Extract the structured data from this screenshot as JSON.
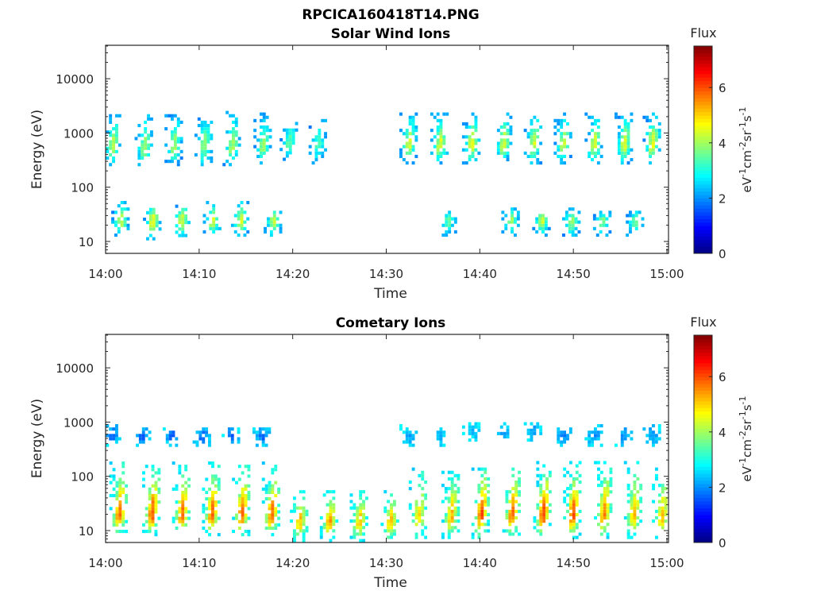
{
  "figure_title": "RPCICA160418T14.PNG",
  "chart_data": [
    {
      "type": "heatmap",
      "title": "Solar Wind Ions",
      "xlabel": "Time",
      "ylabel": "Energy (eV)",
      "x_ticks": [
        "14:00",
        "14:10",
        "14:20",
        "14:30",
        "14:40",
        "14:50",
        "15:00"
      ],
      "x_range_minutes": [
        0,
        60.2
      ],
      "y_scale": "log",
      "y_ticks": [
        "10",
        "100",
        "1000",
        "10000"
      ],
      "ylim": [
        5.8,
        42000
      ],
      "colorbar": {
        "label": "Flux",
        "units": "eV-1cm-2sr-1s-1",
        "ticks": [
          "0",
          "2",
          "4",
          "6"
        ],
        "range": [
          0,
          7.5
        ],
        "colormap": "jet"
      },
      "components": [
        {
          "t": 0.6,
          "e_lo": 280,
          "e_hi": 2600,
          "e_peak": 600,
          "flux": 4.2
        },
        {
          "t": 4.0,
          "e_lo": 280,
          "e_hi": 2600,
          "e_peak": 550,
          "flux": 4.0
        },
        {
          "t": 7.2,
          "e_lo": 280,
          "e_hi": 2600,
          "e_peak": 600,
          "flux": 4.0
        },
        {
          "t": 10.4,
          "e_lo": 280,
          "e_hi": 2600,
          "e_peak": 600,
          "flux": 3.9
        },
        {
          "t": 13.4,
          "e_lo": 280,
          "e_hi": 2600,
          "e_peak": 600,
          "flux": 4.1
        },
        {
          "t": 16.7,
          "e_lo": 300,
          "e_hi": 2400,
          "e_peak": 600,
          "flux": 4.0
        },
        {
          "t": 19.5,
          "e_lo": 350,
          "e_hi": 2000,
          "e_peak": 650,
          "flux": 3.6
        },
        {
          "t": 22.6,
          "e_lo": 300,
          "e_hi": 2000,
          "e_peak": 650,
          "flux": 3.4
        },
        {
          "t": 32.3,
          "e_lo": 300,
          "e_hi": 2600,
          "e_peak": 650,
          "flux": 4.4
        },
        {
          "t": 35.6,
          "e_lo": 300,
          "e_hi": 2600,
          "e_peak": 650,
          "flux": 4.5
        },
        {
          "t": 39.0,
          "e_lo": 300,
          "e_hi": 2600,
          "e_peak": 650,
          "flux": 4.6
        },
        {
          "t": 42.4,
          "e_lo": 300,
          "e_hi": 2600,
          "e_peak": 650,
          "flux": 4.5
        },
        {
          "t": 45.6,
          "e_lo": 300,
          "e_hi": 2600,
          "e_peak": 650,
          "flux": 4.4
        },
        {
          "t": 48.8,
          "e_lo": 300,
          "e_hi": 2600,
          "e_peak": 650,
          "flux": 4.3
        },
        {
          "t": 52.1,
          "e_lo": 300,
          "e_hi": 2600,
          "e_peak": 650,
          "flux": 4.5
        },
        {
          "t": 55.3,
          "e_lo": 300,
          "e_hi": 2600,
          "e_peak": 650,
          "flux": 4.5
        },
        {
          "t": 58.3,
          "e_lo": 300,
          "e_hi": 2600,
          "e_peak": 650,
          "flux": 4.6
        },
        {
          "t": 1.5,
          "e_lo": 14,
          "e_hi": 60,
          "e_peak": 25,
          "flux": 4.3
        },
        {
          "t": 4.9,
          "e_lo": 12,
          "e_hi": 60,
          "e_peak": 25,
          "flux": 4.6
        },
        {
          "t": 8.0,
          "e_lo": 12,
          "e_hi": 60,
          "e_peak": 25,
          "flux": 4.4
        },
        {
          "t": 11.3,
          "e_lo": 14,
          "e_hi": 60,
          "e_peak": 25,
          "flux": 4.4
        },
        {
          "t": 14.3,
          "e_lo": 14,
          "e_hi": 60,
          "e_peak": 25,
          "flux": 4.5
        },
        {
          "t": 17.8,
          "e_lo": 14,
          "e_hi": 50,
          "e_peak": 25,
          "flux": 4.2
        },
        {
          "t": 36.5,
          "e_lo": 14,
          "e_hi": 40,
          "e_peak": 25,
          "flux": 3.5
        },
        {
          "t": 43.2,
          "e_lo": 14,
          "e_hi": 45,
          "e_peak": 25,
          "flux": 4.0
        },
        {
          "t": 46.5,
          "e_lo": 14,
          "e_hi": 45,
          "e_peak": 25,
          "flux": 4.3
        },
        {
          "t": 49.7,
          "e_lo": 14,
          "e_hi": 45,
          "e_peak": 25,
          "flux": 4.2
        },
        {
          "t": 53.0,
          "e_lo": 14,
          "e_hi": 40,
          "e_peak": 25,
          "flux": 3.8
        },
        {
          "t": 56.5,
          "e_lo": 14,
          "e_hi": 40,
          "e_peak": 25,
          "flux": 3.8
        }
      ],
      "background_flux": 2.0
    },
    {
      "type": "heatmap",
      "title": "Cometary Ions",
      "xlabel": "Time",
      "ylabel": "Energy (eV)",
      "x_ticks": [
        "14:00",
        "14:10",
        "14:20",
        "14:30",
        "14:40",
        "14:50",
        "15:00"
      ],
      "x_range_minutes": [
        0,
        60.2
      ],
      "y_scale": "log",
      "y_ticks": [
        "10",
        "100",
        "1000",
        "10000"
      ],
      "ylim": [
        5.8,
        42000
      ],
      "colorbar": {
        "label": "Flux",
        "units": "eV-1cm-2sr-1s-1",
        "ticks": [
          "0",
          "2",
          "4",
          "6"
        ],
        "range": [
          0,
          7.5
        ],
        "colormap": "jet"
      },
      "components": [
        {
          "t": 0.6,
          "e_lo": 400,
          "e_hi": 1000,
          "e_peak": 600,
          "flux": 1.6
        },
        {
          "t": 3.8,
          "e_lo": 400,
          "e_hi": 900,
          "e_peak": 600,
          "flux": 1.6
        },
        {
          "t": 7.0,
          "e_lo": 400,
          "e_hi": 900,
          "e_peak": 600,
          "flux": 1.6
        },
        {
          "t": 10.2,
          "e_lo": 400,
          "e_hi": 900,
          "e_peak": 600,
          "flux": 1.6
        },
        {
          "t": 13.3,
          "e_lo": 400,
          "e_hi": 900,
          "e_peak": 600,
          "flux": 1.6
        },
        {
          "t": 16.6,
          "e_lo": 400,
          "e_hi": 900,
          "e_peak": 600,
          "flux": 1.6
        },
        {
          "t": 32.3,
          "e_lo": 400,
          "e_hi": 1000,
          "e_peak": 600,
          "flux": 2.2
        },
        {
          "t": 35.6,
          "e_lo": 400,
          "e_hi": 900,
          "e_peak": 600,
          "flux": 2.2
        },
        {
          "t": 39.0,
          "e_lo": 500,
          "e_hi": 1000,
          "e_peak": 700,
          "flux": 2.4
        },
        {
          "t": 42.4,
          "e_lo": 500,
          "e_hi": 1000,
          "e_peak": 700,
          "flux": 2.2
        },
        {
          "t": 45.6,
          "e_lo": 500,
          "e_hi": 1000,
          "e_peak": 700,
          "flux": 2.0
        },
        {
          "t": 48.8,
          "e_lo": 400,
          "e_hi": 900,
          "e_peak": 600,
          "flux": 1.8
        },
        {
          "t": 52.1,
          "e_lo": 400,
          "e_hi": 1000,
          "e_peak": 600,
          "flux": 2.0
        },
        {
          "t": 55.3,
          "e_lo": 400,
          "e_hi": 1000,
          "e_peak": 600,
          "flux": 2.0
        },
        {
          "t": 58.3,
          "e_lo": 400,
          "e_hi": 1000,
          "e_peak": 600,
          "flux": 2.0
        },
        {
          "t": 1.3,
          "e_lo": 9,
          "e_hi": 200,
          "e_peak": 20,
          "flux": 5.8
        },
        {
          "t": 4.8,
          "e_lo": 9,
          "e_hi": 200,
          "e_peak": 20,
          "flux": 6.0
        },
        {
          "t": 8.0,
          "e_lo": 9,
          "e_hi": 200,
          "e_peak": 20,
          "flux": 5.8
        },
        {
          "t": 11.2,
          "e_lo": 9,
          "e_hi": 200,
          "e_peak": 20,
          "flux": 5.8
        },
        {
          "t": 14.4,
          "e_lo": 9,
          "e_hi": 200,
          "e_peak": 20,
          "flux": 5.9
        },
        {
          "t": 17.6,
          "e_lo": 9,
          "e_hi": 200,
          "e_peak": 20,
          "flux": 5.8
        },
        {
          "t": 20.6,
          "e_lo": 7,
          "e_hi": 60,
          "e_peak": 15,
          "flux": 5.2
        },
        {
          "t": 23.8,
          "e_lo": 7,
          "e_hi": 60,
          "e_peak": 15,
          "flux": 5.4
        },
        {
          "t": 27.0,
          "e_lo": 7,
          "e_hi": 60,
          "e_peak": 15,
          "flux": 5.2
        },
        {
          "t": 30.3,
          "e_lo": 7,
          "e_hi": 60,
          "e_peak": 15,
          "flux": 5.2
        },
        {
          "t": 33.3,
          "e_lo": 8,
          "e_hi": 150,
          "e_peak": 18,
          "flux": 5.0
        },
        {
          "t": 36.8,
          "e_lo": 8,
          "e_hi": 150,
          "e_peak": 18,
          "flux": 5.2
        },
        {
          "t": 40.0,
          "e_lo": 8,
          "e_hi": 200,
          "e_peak": 20,
          "flux": 6.0
        },
        {
          "t": 43.3,
          "e_lo": 8,
          "e_hi": 200,
          "e_peak": 20,
          "flux": 5.8
        },
        {
          "t": 46.6,
          "e_lo": 8,
          "e_hi": 200,
          "e_peak": 20,
          "flux": 6.2
        },
        {
          "t": 49.8,
          "e_lo": 8,
          "e_hi": 200,
          "e_peak": 20,
          "flux": 6.0
        },
        {
          "t": 53.1,
          "e_lo": 8,
          "e_hi": 200,
          "e_peak": 20,
          "flux": 5.6
        },
        {
          "t": 56.3,
          "e_lo": 8,
          "e_hi": 200,
          "e_peak": 20,
          "flux": 5.2
        },
        {
          "t": 59.3,
          "e_lo": 8,
          "e_hi": 150,
          "e_peak": 18,
          "flux": 5.2
        }
      ],
      "background_flux": 2.6
    }
  ]
}
